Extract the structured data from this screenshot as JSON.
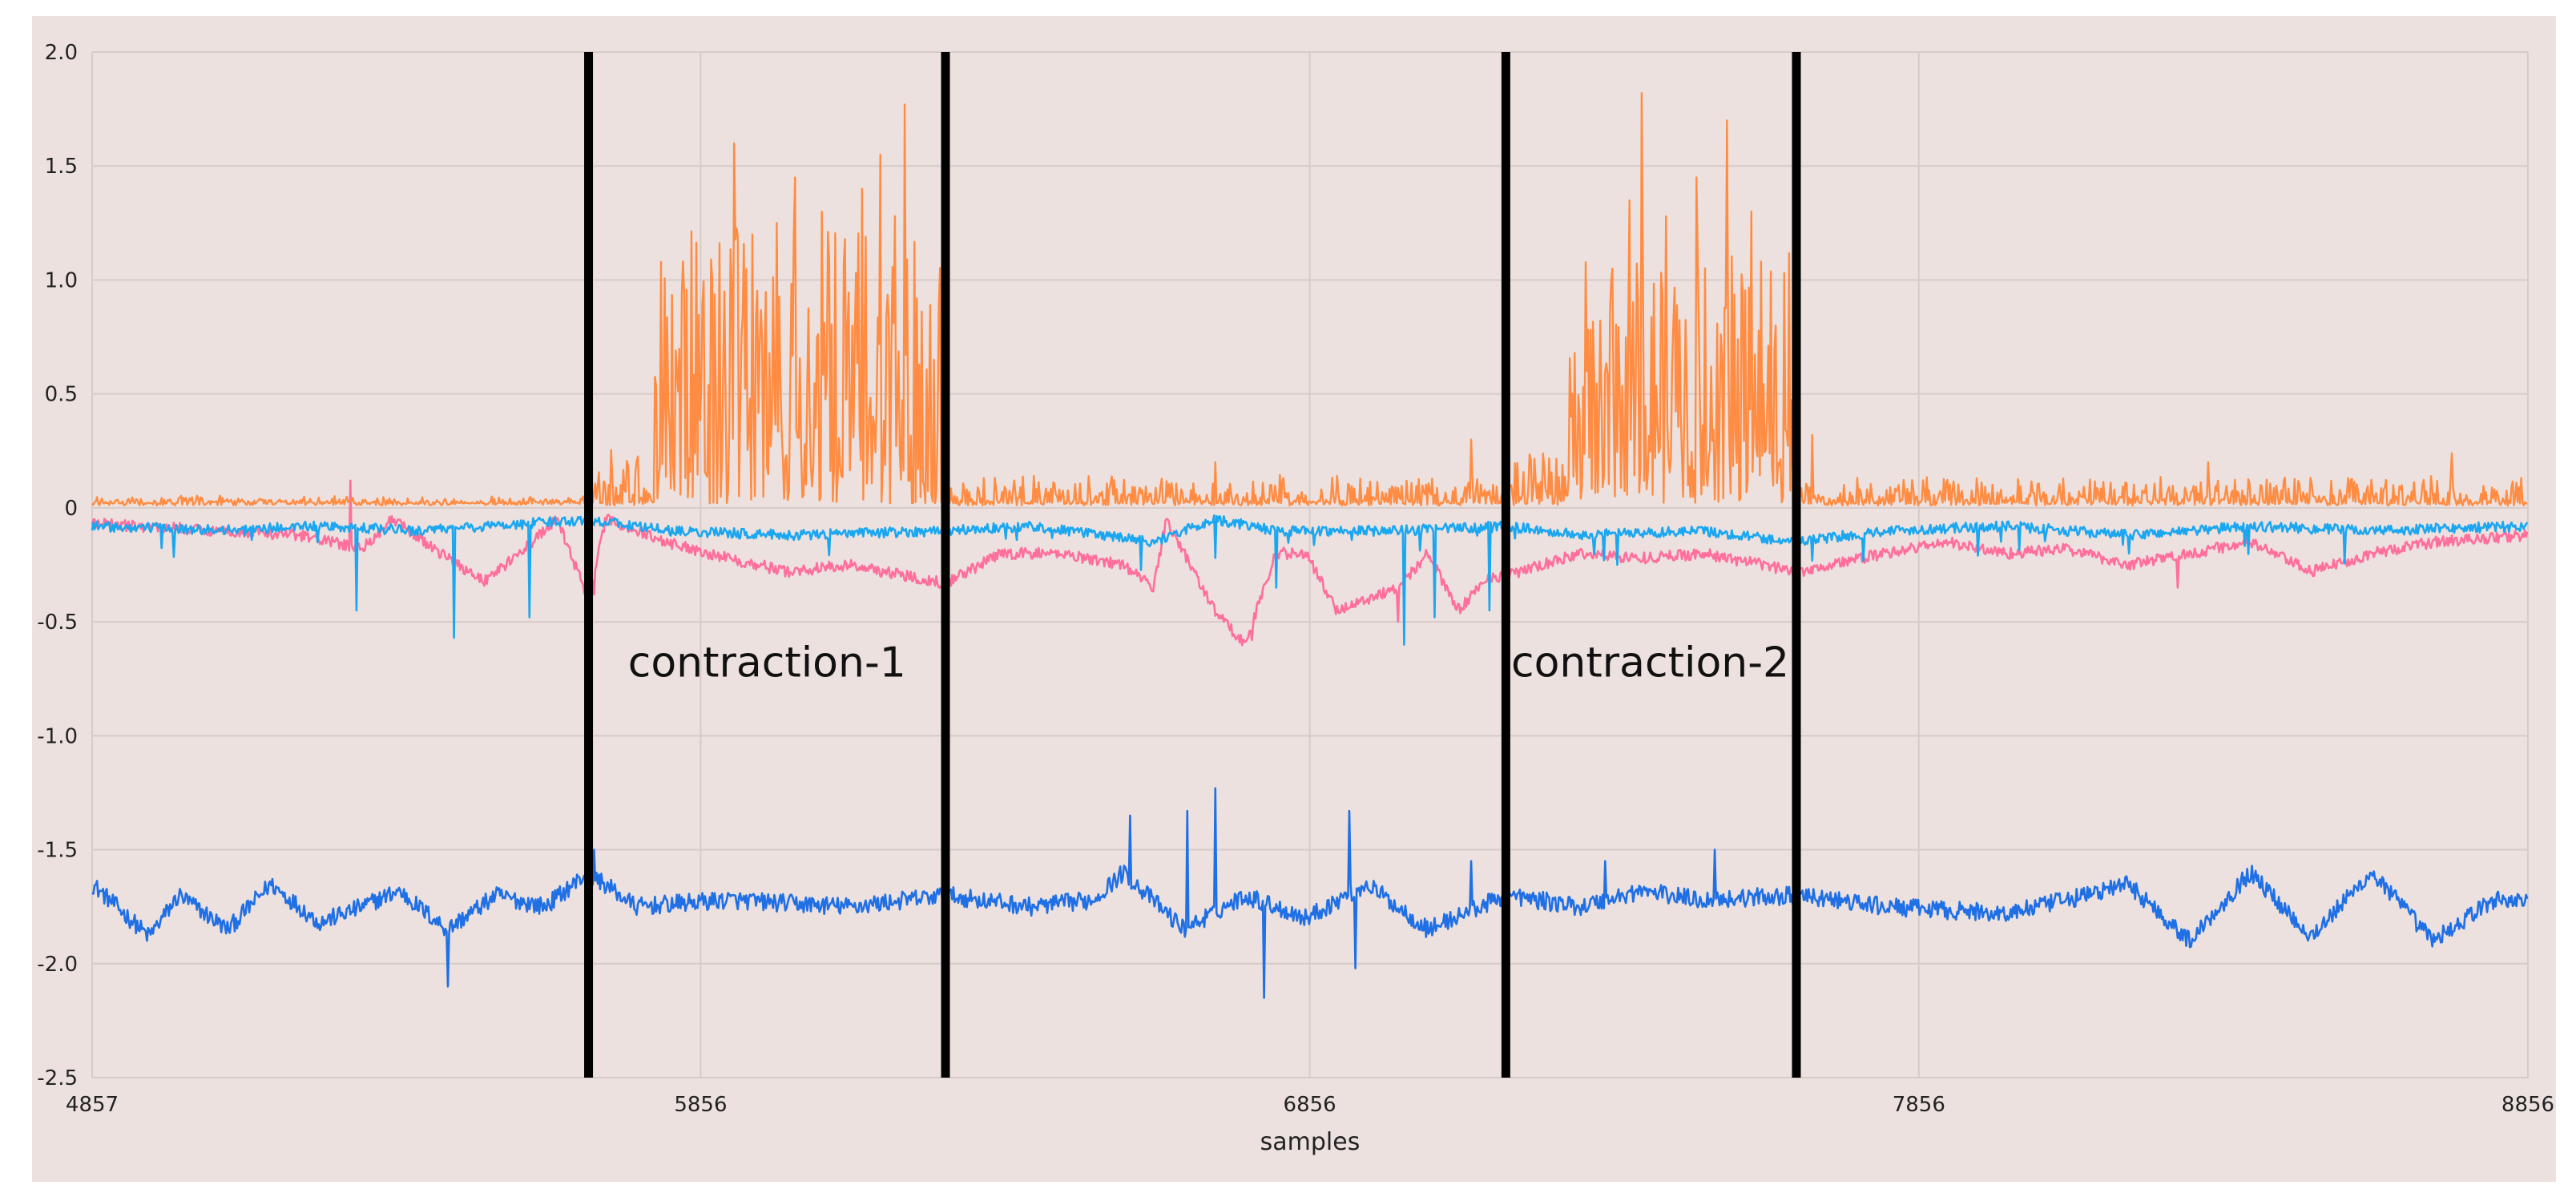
{
  "chart_data": {
    "type": "line",
    "title": "",
    "xlabel": "samples",
    "ylabel": "",
    "xlim": [
      4857,
      8856
    ],
    "ylim": [
      -2.5,
      2.0
    ],
    "grid": true,
    "x_tick_labels": [
      "4857",
      "5856",
      "6856",
      "7856",
      "8856"
    ],
    "x_tick_values": [
      4857,
      5856,
      6856,
      7856,
      8856
    ],
    "y_tick_labels": [
      "2.0",
      "1.5",
      "1.0",
      "0.5",
      "0",
      "-0.5",
      "-1.0",
      "-1.5",
      "-2.0",
      "-2.5"
    ],
    "y_tick_values": [
      2.0,
      1.5,
      1.0,
      0.5,
      0,
      -0.5,
      -1.0,
      -1.5,
      -2.0,
      -2.5
    ],
    "boundaries": [
      5672,
      6258,
      7178,
      7655
    ],
    "annotations": [
      {
        "text": "contraction-1",
        "x": 5965,
        "y": -0.74
      },
      {
        "text": "contraction-2",
        "x": 7415,
        "y": -0.74
      }
    ],
    "colors": {
      "background": "#ece1de",
      "grid": "#d6cbc8",
      "boundary": "#000000"
    },
    "series": [
      {
        "name": "orange",
        "color": "#ff8c42",
        "baseline": 0.01,
        "noise": 0.03,
        "segments": [
          {
            "from": 4857,
            "to": 5672,
            "level": 0.01
          },
          {
            "from": 5672,
            "to": 5780,
            "level": 0.08
          },
          {
            "from": 5780,
            "to": 6258,
            "level": 0.55
          },
          {
            "from": 6258,
            "to": 7178,
            "level": 0.04
          },
          {
            "from": 7178,
            "to": 7280,
            "level": 0.08
          },
          {
            "from": 7280,
            "to": 7655,
            "level": 0.5
          },
          {
            "from": 7655,
            "to": 8856,
            "level": 0.04
          }
        ],
        "peaks": [
          [
            5805,
            0.35
          ],
          [
            5895,
            0.95
          ],
          [
            5910,
            1.6
          ],
          [
            5940,
            1.2
          ],
          [
            5980,
            1.25
          ],
          [
            6010,
            1.45
          ],
          [
            6055,
            1.3
          ],
          [
            6120,
            1.4
          ],
          [
            6150,
            1.55
          ],
          [
            6175,
            1.28
          ],
          [
            6190,
            1.77
          ],
          [
            6230,
            0.45
          ],
          [
            6700,
            0.2
          ],
          [
            6900,
            0.14
          ],
          [
            7120,
            0.3
          ],
          [
            7285,
            0.4
          ],
          [
            7350,
            1.0
          ],
          [
            7380,
            1.35
          ],
          [
            7400,
            1.82
          ],
          [
            7440,
            1.28
          ],
          [
            7490,
            1.45
          ],
          [
            7540,
            1.7
          ],
          [
            7580,
            1.3
          ],
          [
            7620,
            0.8
          ],
          [
            7680,
            0.32
          ],
          [
            8330,
            0.2
          ],
          [
            8730,
            0.24
          ]
        ]
      },
      {
        "name": "pink",
        "color": "#ff6f9c",
        "points": [
          [
            4857,
            -0.07
          ],
          [
            5000,
            -0.09
          ],
          [
            5200,
            -0.12
          ],
          [
            5300,
            -0.18
          ],
          [
            5350,
            -0.05
          ],
          [
            5430,
            -0.2
          ],
          [
            5500,
            -0.32
          ],
          [
            5550,
            -0.22
          ],
          [
            5620,
            -0.05
          ],
          [
            5672,
            -0.4
          ],
          [
            5700,
            -0.05
          ],
          [
            5800,
            -0.15
          ],
          [
            5900,
            -0.22
          ],
          [
            6000,
            -0.28
          ],
          [
            6100,
            -0.25
          ],
          [
            6258,
            -0.33
          ],
          [
            6350,
            -0.2
          ],
          [
            6450,
            -0.2
          ],
          [
            6550,
            -0.25
          ],
          [
            6600,
            -0.35
          ],
          [
            6620,
            -0.05
          ],
          [
            6700,
            -0.45
          ],
          [
            6750,
            -0.6
          ],
          [
            6800,
            -0.2
          ],
          [
            6850,
            -0.2
          ],
          [
            6900,
            -0.45
          ],
          [
            6950,
            -0.4
          ],
          [
            7000,
            -0.35
          ],
          [
            7050,
            -0.2
          ],
          [
            7100,
            -0.45
          ],
          [
            7150,
            -0.3
          ],
          [
            7178,
            -0.3
          ],
          [
            7300,
            -0.2
          ],
          [
            7400,
            -0.22
          ],
          [
            7500,
            -0.2
          ],
          [
            7600,
            -0.25
          ],
          [
            7655,
            -0.28
          ],
          [
            7800,
            -0.2
          ],
          [
            7900,
            -0.15
          ],
          [
            8000,
            -0.2
          ],
          [
            8100,
            -0.18
          ],
          [
            8200,
            -0.25
          ],
          [
            8300,
            -0.2
          ],
          [
            8400,
            -0.15
          ],
          [
            8500,
            -0.28
          ],
          [
            8600,
            -0.2
          ],
          [
            8700,
            -0.15
          ],
          [
            8856,
            -0.12
          ]
        ],
        "spikes": [
          [
            5280,
            0.12
          ],
          [
            5680,
            -0.38
          ],
          [
            6760,
            -0.58
          ],
          [
            7000,
            -0.5
          ],
          [
            8280,
            -0.35
          ]
        ]
      },
      {
        "name": "light-blue",
        "color": "#1ba7f0",
        "points": [
          [
            4857,
            -0.08
          ],
          [
            5100,
            -0.1
          ],
          [
            5200,
            -0.08
          ],
          [
            5400,
            -0.1
          ],
          [
            5672,
            -0.05
          ],
          [
            5800,
            -0.1
          ],
          [
            6000,
            -0.12
          ],
          [
            6258,
            -0.1
          ],
          [
            6400,
            -0.08
          ],
          [
            6600,
            -0.15
          ],
          [
            6700,
            -0.05
          ],
          [
            6800,
            -0.1
          ],
          [
            6900,
            -0.1
          ],
          [
            7000,
            -0.1
          ],
          [
            7178,
            -0.08
          ],
          [
            7300,
            -0.12
          ],
          [
            7500,
            -0.1
          ],
          [
            7655,
            -0.15
          ],
          [
            7800,
            -0.1
          ],
          [
            8000,
            -0.08
          ],
          [
            8200,
            -0.12
          ],
          [
            8400,
            -0.08
          ],
          [
            8600,
            -0.1
          ],
          [
            8856,
            -0.08
          ]
        ],
        "spikes": [
          [
            5290,
            -0.45
          ],
          [
            5450,
            -0.57
          ],
          [
            5575,
            -0.48
          ],
          [
            5675,
            -0.38
          ],
          [
            6700,
            -0.22
          ],
          [
            6800,
            -0.35
          ],
          [
            7010,
            -0.6
          ],
          [
            7060,
            -0.48
          ],
          [
            7150,
            -0.45
          ],
          [
            7360,
            -0.25
          ],
          [
            8200,
            -0.2
          ]
        ]
      },
      {
        "name": "dark-blue",
        "color": "#1f6fe5",
        "baseline": -1.72,
        "points": [
          [
            4857,
            -1.65
          ],
          [
            4950,
            -1.88
          ],
          [
            5000,
            -1.7
          ],
          [
            5080,
            -1.85
          ],
          [
            5150,
            -1.65
          ],
          [
            5230,
            -1.82
          ],
          [
            5300,
            -1.75
          ],
          [
            5360,
            -1.68
          ],
          [
            5440,
            -1.85
          ],
          [
            5520,
            -1.7
          ],
          [
            5600,
            -1.75
          ],
          [
            5672,
            -1.6
          ],
          [
            5750,
            -1.75
          ],
          [
            5900,
            -1.72
          ],
          [
            6100,
            -1.75
          ],
          [
            6258,
            -1.7
          ],
          [
            6400,
            -1.75
          ],
          [
            6500,
            -1.72
          ],
          [
            6550,
            -1.6
          ],
          [
            6650,
            -1.85
          ],
          [
            6750,
            -1.7
          ],
          [
            6850,
            -1.8
          ],
          [
            6950,
            -1.65
          ],
          [
            7050,
            -1.85
          ],
          [
            7178,
            -1.7
          ],
          [
            7300,
            -1.75
          ],
          [
            7400,
            -1.68
          ],
          [
            7500,
            -1.72
          ],
          [
            7655,
            -1.7
          ],
          [
            7800,
            -1.75
          ],
          [
            8000,
            -1.78
          ],
          [
            8100,
            -1.72
          ],
          [
            8200,
            -1.65
          ],
          [
            8300,
            -1.9
          ],
          [
            8400,
            -1.6
          ],
          [
            8500,
            -1.88
          ],
          [
            8600,
            -1.6
          ],
          [
            8700,
            -1.9
          ],
          [
            8800,
            -1.72
          ],
          [
            8856,
            -1.72
          ]
        ],
        "spikes": [
          [
            5440,
            -2.1
          ],
          [
            5680,
            -1.5
          ],
          [
            6560,
            -1.35
          ],
          [
            6655,
            -1.33
          ],
          [
            6700,
            -1.23
          ],
          [
            6780,
            -2.15
          ],
          [
            6920,
            -1.33
          ],
          [
            6930,
            -2.02
          ],
          [
            7120,
            -1.55
          ],
          [
            7340,
            -1.55
          ],
          [
            7520,
            -1.5
          ]
        ]
      }
    ]
  }
}
